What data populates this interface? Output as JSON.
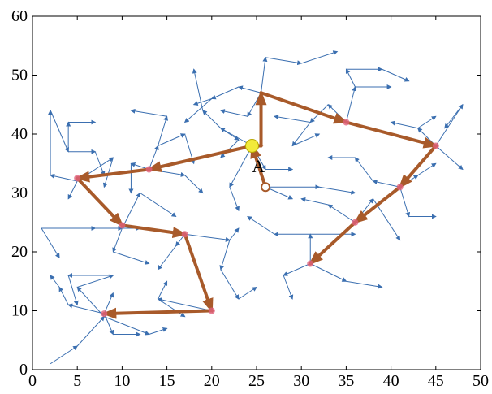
{
  "chart_data": {
    "type": "scatter",
    "title": "",
    "xlabel": "",
    "ylabel": "",
    "xlim": [
      0,
      50
    ],
    "ylim": [
      0,
      60
    ],
    "xticks": [
      "0",
      "5",
      "10",
      "15",
      "20",
      "25",
      "30",
      "35",
      "40",
      "45",
      "50"
    ],
    "yticks": [
      "0",
      "10",
      "20",
      "30",
      "40",
      "50",
      "60"
    ],
    "grid": false,
    "colors": {
      "tree": "#3b6fb0",
      "path": "#a85a2a",
      "waypoint": "#e0607a",
      "start": "#f2ea3a",
      "annotation": "#a85a2a"
    },
    "annotation": {
      "text": "A",
      "x": 26,
      "y": 31,
      "label_x": 25.2,
      "label_y": 33.5
    },
    "start_point": {
      "x": 24.5,
      "y": 38
    },
    "path": [
      {
        "x": 26,
        "y": 31
      },
      {
        "x": 24.5,
        "y": 38
      },
      {
        "x": 25.5,
        "y": 38
      },
      {
        "x": 25.5,
        "y": 47
      },
      {
        "x": 35,
        "y": 42
      },
      {
        "x": 45,
        "y": 38
      },
      {
        "x": 41,
        "y": 31
      },
      {
        "x": 36,
        "y": 25
      },
      {
        "x": 31,
        "y": 18
      }
    ],
    "path2": [
      {
        "x": 24.5,
        "y": 38
      },
      {
        "x": 13,
        "y": 34
      },
      {
        "x": 5,
        "y": 32.5
      },
      {
        "x": 10,
        "y": 24.5
      },
      {
        "x": 17,
        "y": 23
      },
      {
        "x": 20,
        "y": 10
      },
      {
        "x": 8,
        "y": 9.5
      }
    ],
    "waypoints": [
      {
        "x": 35,
        "y": 42
      },
      {
        "x": 45,
        "y": 38
      },
      {
        "x": 41,
        "y": 31
      },
      {
        "x": 36,
        "y": 25
      },
      {
        "x": 31,
        "y": 18
      },
      {
        "x": 13,
        "y": 34
      },
      {
        "x": 5,
        "y": 32.5
      },
      {
        "x": 10,
        "y": 24.5
      },
      {
        "x": 17,
        "y": 23
      },
      {
        "x": 20,
        "y": 10
      },
      {
        "x": 8,
        "y": 9.5
      }
    ],
    "tree_edges": [
      [
        2,
        1,
        5,
        4
      ],
      [
        5,
        4,
        8,
        9
      ],
      [
        8,
        9,
        13,
        6
      ],
      [
        13,
        6,
        15,
        7
      ],
      [
        8,
        9,
        5,
        14
      ],
      [
        5,
        14,
        9,
        16
      ],
      [
        9,
        16,
        4,
        16
      ],
      [
        4,
        16,
        5,
        11
      ],
      [
        1,
        24,
        7,
        24
      ],
      [
        7,
        24,
        10,
        24
      ],
      [
        10,
        24,
        12,
        24
      ],
      [
        10,
        24,
        9,
        20
      ],
      [
        9,
        20,
        13,
        18
      ],
      [
        1,
        24,
        3,
        19
      ],
      [
        10,
        24,
        12,
        30
      ],
      [
        12,
        30,
        16,
        26
      ],
      [
        5,
        32,
        4,
        29
      ],
      [
        5,
        32,
        9,
        36
      ],
      [
        9,
        36,
        8,
        31
      ],
      [
        5,
        32,
        2,
        33
      ],
      [
        2,
        33,
        2,
        44
      ],
      [
        2,
        44,
        4,
        37
      ],
      [
        4,
        37,
        7,
        37
      ],
      [
        7,
        37,
        8,
        33
      ],
      [
        4,
        37,
        4,
        42
      ],
      [
        4,
        42,
        7,
        42
      ],
      [
        13,
        34,
        17,
        33
      ],
      [
        17,
        33,
        19,
        30
      ],
      [
        13,
        34,
        14,
        38
      ],
      [
        14,
        38,
        15,
        43
      ],
      [
        15,
        43,
        11,
        44
      ],
      [
        14,
        38,
        17,
        40
      ],
      [
        17,
        40,
        18,
        35
      ],
      [
        13,
        34,
        11,
        35
      ],
      [
        11,
        35,
        11,
        30
      ],
      [
        17,
        23,
        16,
        21
      ],
      [
        16,
        21,
        14,
        17
      ],
      [
        17,
        23,
        22,
        22
      ],
      [
        22,
        22,
        23,
        24
      ],
      [
        22,
        22,
        21,
        17
      ],
      [
        21,
        17,
        23,
        12
      ],
      [
        23,
        12,
        25,
        14
      ],
      [
        20,
        10,
        14,
        12
      ],
      [
        14,
        12,
        15,
        15
      ],
      [
        14,
        12,
        17,
        9
      ],
      [
        24.5,
        38,
        21,
        41
      ],
      [
        21,
        41,
        19,
        44
      ],
      [
        19,
        44,
        18,
        51
      ],
      [
        21,
        41,
        23,
        39
      ],
      [
        23,
        39,
        21,
        36
      ],
      [
        24.5,
        38,
        22,
        31
      ],
      [
        22,
        31,
        23,
        27
      ],
      [
        24.5,
        38,
        26,
        34
      ],
      [
        26,
        34,
        29,
        34
      ],
      [
        25.5,
        47,
        23,
        48
      ],
      [
        23,
        48,
        20,
        46
      ],
      [
        20,
        46,
        17,
        42
      ],
      [
        25.5,
        47,
        26,
        53
      ],
      [
        26,
        53,
        30,
        52
      ],
      [
        30,
        52,
        34,
        54
      ],
      [
        25.5,
        47,
        24,
        43
      ],
      [
        24,
        43,
        21,
        44
      ],
      [
        35,
        42,
        33,
        45
      ],
      [
        33,
        45,
        31,
        42
      ],
      [
        31,
        42,
        27,
        43
      ],
      [
        31,
        42,
        29,
        38
      ],
      [
        35,
        42,
        36,
        48
      ],
      [
        36,
        48,
        35,
        51
      ],
      [
        35,
        51,
        39,
        51
      ],
      [
        39,
        51,
        42,
        49
      ],
      [
        36,
        48,
        40,
        48
      ],
      [
        45,
        38,
        43,
        41
      ],
      [
        43,
        41,
        40,
        42
      ],
      [
        43,
        41,
        45,
        43
      ],
      [
        45,
        38,
        48,
        45
      ],
      [
        48,
        45,
        46,
        41
      ],
      [
        45,
        38,
        48,
        34
      ],
      [
        41,
        31,
        38,
        32
      ],
      [
        38,
        32,
        36,
        36
      ],
      [
        36,
        36,
        33,
        36
      ],
      [
        41,
        31,
        43,
        33
      ],
      [
        43,
        33,
        45,
        35
      ],
      [
        41,
        31,
        42,
        26
      ],
      [
        42,
        26,
        45,
        26
      ],
      [
        36,
        25,
        38,
        29
      ],
      [
        38,
        29,
        41,
        22
      ],
      [
        36,
        25,
        33,
        28
      ],
      [
        33,
        28,
        30,
        29
      ],
      [
        31,
        18,
        28,
        16
      ],
      [
        28,
        16,
        29,
        12
      ],
      [
        31,
        18,
        35,
        15
      ],
      [
        35,
        15,
        39,
        14
      ],
      [
        31,
        18,
        31,
        23
      ],
      [
        31,
        23,
        27,
        23
      ],
      [
        27,
        23,
        24,
        26
      ],
      [
        31,
        23,
        36,
        23
      ],
      [
        26,
        31,
        32,
        31
      ],
      [
        32,
        31,
        36,
        30
      ],
      [
        26,
        31,
        29,
        29
      ],
      [
        29,
        38,
        32,
        40
      ],
      [
        20,
        46,
        18,
        45
      ],
      [
        8,
        9.5,
        9,
        6
      ],
      [
        9,
        6,
        12,
        6
      ],
      [
        8,
        9.5,
        4,
        11
      ],
      [
        4,
        11,
        3,
        14
      ],
      [
        3,
        14,
        2,
        16
      ],
      [
        8,
        9.5,
        9,
        13
      ]
    ]
  }
}
